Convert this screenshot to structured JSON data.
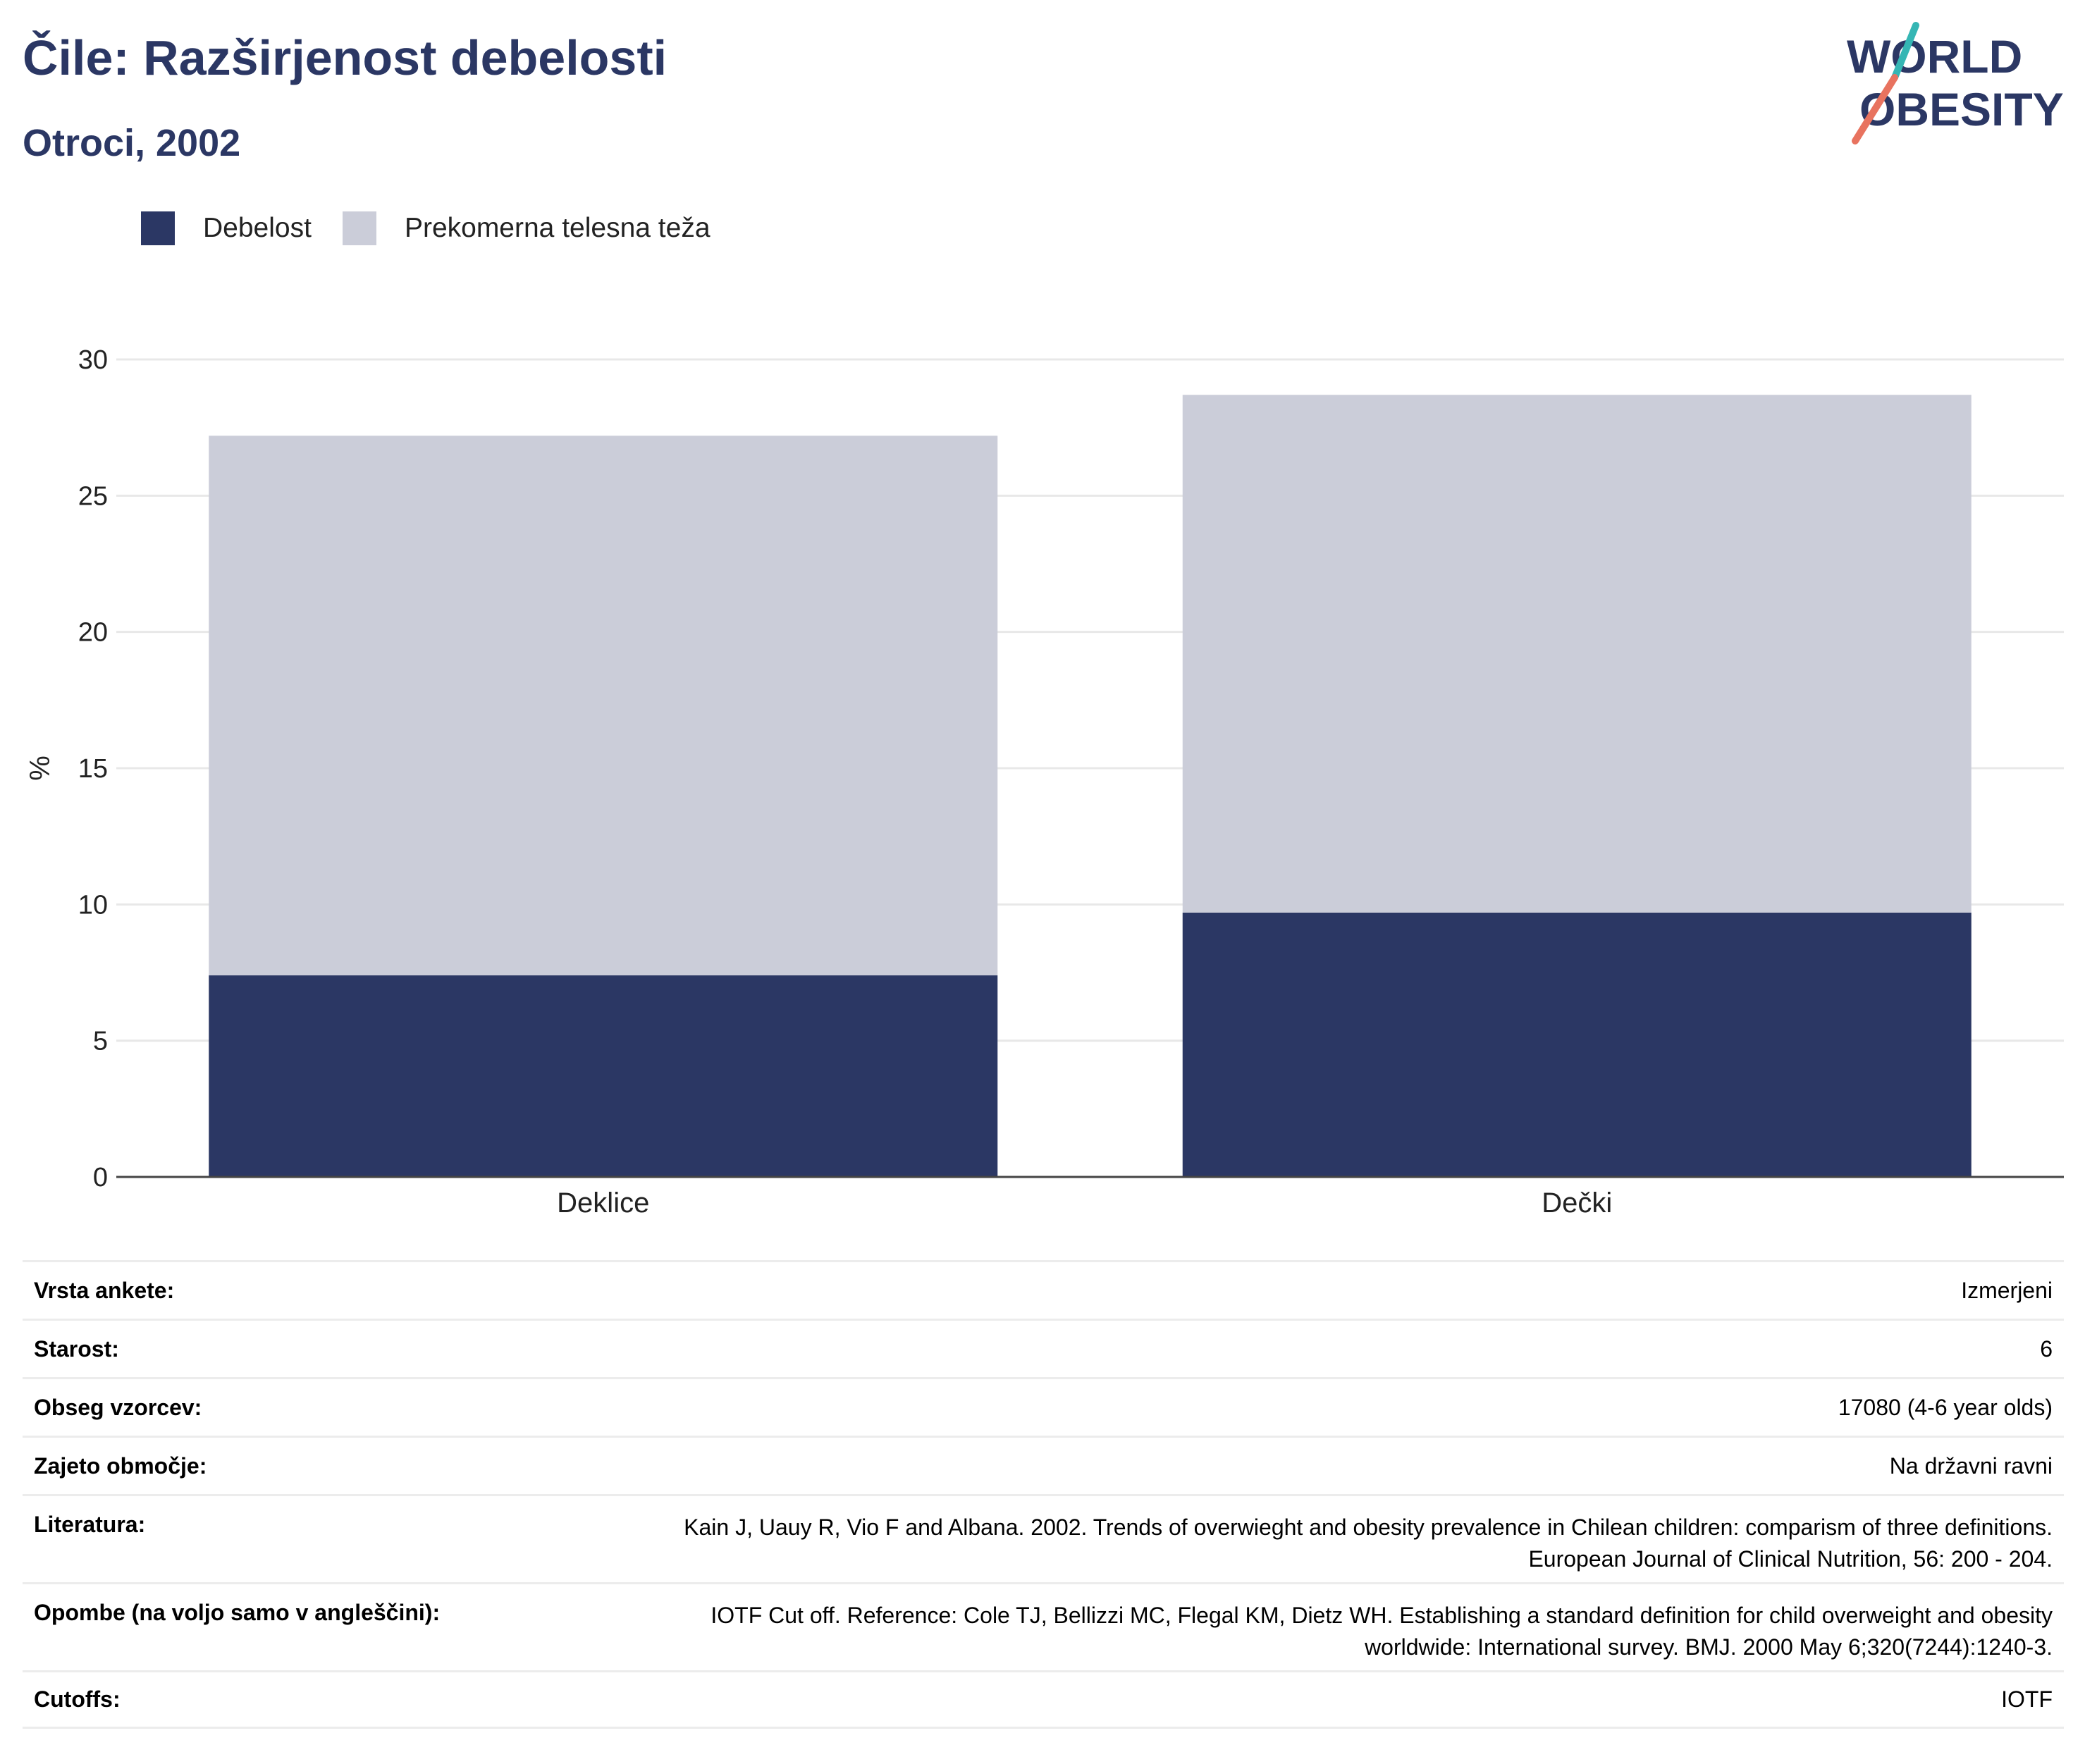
{
  "title": "Čile: Razširjenost debelosti",
  "subtitle": "Otroci, 2002",
  "logo": {
    "line1": "WORLD",
    "line2": "OBESITY"
  },
  "colors": {
    "obesity": "#2b3764",
    "overweight": "#cbcdd9",
    "title": "#2b3764",
    "accent_teal": "#35b6b4",
    "accent_coral": "#e8735f"
  },
  "legend": {
    "obesity": "Debelost",
    "overweight": "Prekomerna telesna teža"
  },
  "chart_data": {
    "type": "bar",
    "stacked": true,
    "categories": [
      "Deklice",
      "Dečki"
    ],
    "series": [
      {
        "name": "Debelost",
        "values": [
          7.4,
          9.7
        ]
      },
      {
        "name": "Prekomerna telesna teža",
        "values": [
          19.8,
          19.0
        ]
      }
    ],
    "ylabel": "%",
    "ylim": [
      0,
      30
    ],
    "yticks": [
      0,
      5,
      10,
      15,
      20,
      25,
      30
    ],
    "grid": true,
    "legend_position": "top-left"
  },
  "meta": {
    "survey_type_label": "Vrsta ankete:",
    "survey_type": "Izmerjeni",
    "age_label": "Starost:",
    "age": "6",
    "sample_label": "Obseg vzorcev:",
    "sample": "17080 (4-6 year olds)",
    "area_label": "Zajeto območje:",
    "area": "Na državni ravni",
    "reference_label": "Literatura:",
    "reference_line1": "Kain J, Uauy R, Vio F and Albana. 2002. Trends of overwieght and obesity prevalence in Chilean children: comparism of three definitions.",
    "reference_line2": "European Journal of Clinical Nutrition, 56: 200 - 204.",
    "notes_label": "Opombe (na voljo samo v angleščini):",
    "notes_line1": "IOTF Cut off. Reference: Cole TJ, Bellizzi MC, Flegal KM, Dietz WH. Establishing a standard definition for child overweight and obesity",
    "notes_line2": "worldwide: International survey. BMJ. 2000 May 6;320(7244):1240-3.",
    "cutoffs_label": "Cutoffs:",
    "cutoffs": "IOTF"
  }
}
